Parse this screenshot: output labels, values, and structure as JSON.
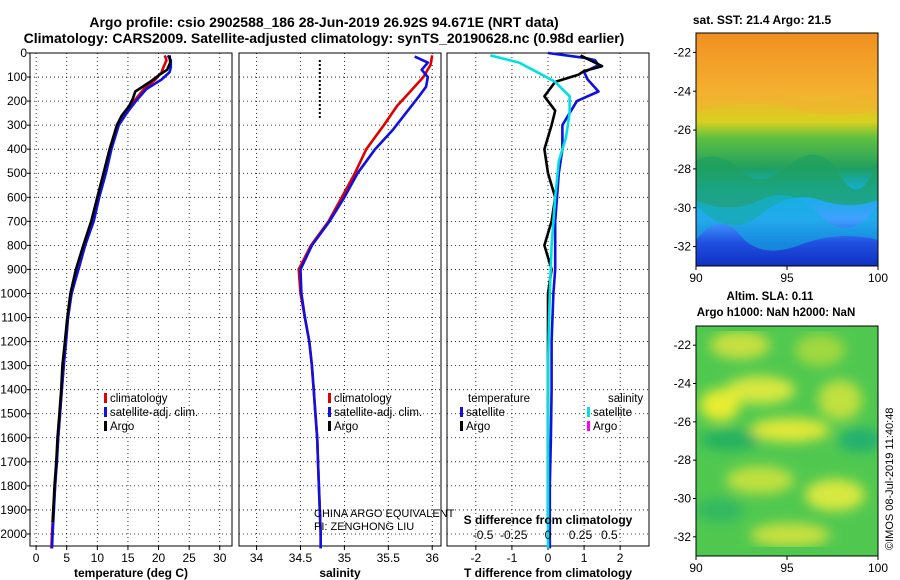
{
  "header": {
    "line1": "Argo profile: csio 2902588_186 28-Jun-2019 26.92S 94.671E (NRT data)",
    "line2": "Climatology: CARS2009. Satellite-adjusted climatology: synTS_20190628.nc (0.98d earlier)"
  },
  "colors": {
    "climatology": "#e00000",
    "satellite_adj": "#1010e0",
    "argo": "#000000",
    "sat_diff_T": "#00e0e0",
    "argo_diff_S": "#ff00ff"
  },
  "chart_data": [
    {
      "type": "line",
      "panel": "temperature",
      "xlabel": "temperature (deg C)",
      "ylabel": "",
      "xlim": [
        -1,
        32
      ],
      "ylim": [
        2050,
        0
      ],
      "xticks": [
        0,
        5,
        10,
        15,
        20,
        25,
        30
      ],
      "yticks": [
        0,
        100,
        200,
        300,
        400,
        500,
        600,
        700,
        800,
        900,
        1000,
        1100,
        1200,
        1300,
        1400,
        1500,
        1600,
        1700,
        1800,
        1900,
        2000
      ],
      "legend": [
        "climatology",
        "satellite-adj. clim.",
        "Argo"
      ],
      "series": [
        {
          "name": "climatology",
          "color": "#e00000",
          "points": [
            [
              21.0,
              10
            ],
            [
              21.3,
              30
            ],
            [
              20.8,
              60
            ],
            [
              20.5,
              80
            ],
            [
              19.5,
              110
            ],
            [
              17.6,
              150
            ],
            [
              16.0,
              200
            ],
            [
              14.5,
              250
            ],
            [
              13.3,
              300
            ],
            [
              12.2,
              400
            ],
            [
              11.3,
              500
            ],
            [
              10.2,
              600
            ],
            [
              9.3,
              700
            ],
            [
              8.0,
              800
            ],
            [
              6.9,
              900
            ],
            [
              5.7,
              1000
            ],
            [
              5.2,
              1100
            ],
            [
              4.8,
              1200
            ],
            [
              4.5,
              1300
            ],
            [
              4.2,
              1400
            ],
            [
              3.9,
              1500
            ],
            [
              3.6,
              1600
            ],
            [
              3.3,
              1700
            ],
            [
              3.1,
              1800
            ],
            [
              2.8,
              1900
            ],
            [
              2.6,
              2000
            ],
            [
              2.5,
              2060
            ]
          ]
        },
        {
          "name": "satellite-adj. clim.",
          "color": "#1010e0",
          "points": [
            [
              21.5,
              10
            ],
            [
              22.0,
              30
            ],
            [
              22.0,
              60
            ],
            [
              21.8,
              80
            ],
            [
              20.5,
              110
            ],
            [
              18.0,
              150
            ],
            [
              16.3,
              200
            ],
            [
              14.8,
              250
            ],
            [
              13.5,
              300
            ],
            [
              12.3,
              400
            ],
            [
              11.4,
              500
            ],
            [
              10.3,
              600
            ],
            [
              9.4,
              700
            ],
            [
              8.0,
              800
            ],
            [
              6.9,
              900
            ],
            [
              5.8,
              1000
            ],
            [
              5.2,
              1100
            ],
            [
              4.9,
              1200
            ],
            [
              4.5,
              1300
            ],
            [
              4.2,
              1400
            ],
            [
              3.9,
              1500
            ],
            [
              3.6,
              1600
            ],
            [
              3.4,
              1700
            ],
            [
              3.1,
              1800
            ],
            [
              2.9,
              1900
            ],
            [
              2.7,
              2000
            ],
            [
              2.6,
              2060
            ]
          ]
        },
        {
          "name": "Argo",
          "color": "#000000",
          "points": [
            [
              21.8,
              10
            ],
            [
              21.9,
              40
            ],
            [
              21.4,
              70
            ],
            [
              20.2,
              90
            ],
            [
              18.6,
              120
            ],
            [
              16.2,
              160
            ],
            [
              15.8,
              190
            ],
            [
              15.2,
              220
            ],
            [
              14.0,
              260
            ],
            [
              13.2,
              300
            ],
            [
              12.0,
              400
            ],
            [
              11.0,
              500
            ],
            [
              10.0,
              600
            ],
            [
              9.0,
              700
            ],
            [
              7.7,
              800
            ],
            [
              6.5,
              900
            ],
            [
              5.6,
              1000
            ],
            [
              5.1,
              1100
            ],
            [
              4.7,
              1200
            ],
            [
              4.3,
              1300
            ],
            [
              4.1,
              1400
            ],
            [
              3.8,
              1500
            ],
            [
              3.5,
              1600
            ],
            [
              3.3,
              1700
            ],
            [
              3.0,
              1800
            ],
            [
              2.8,
              1900
            ],
            [
              2.7,
              1950
            ]
          ]
        }
      ]
    },
    {
      "type": "line",
      "panel": "salinity",
      "xlabel": "salinity",
      "xlim": [
        33.8,
        36.1
      ],
      "ylim": [
        2050,
        0
      ],
      "xticks": [
        34,
        34.5,
        35,
        35.5,
        36
      ],
      "legend": [
        "climatology",
        "satellite-adj. clim.",
        "Argo"
      ],
      "annotations": [
        "CHINA ARGO EQUIVALENT",
        "PI: ZENGHONG LIU"
      ],
      "series": [
        {
          "name": "climatology",
          "color": "#e00000",
          "points": [
            [
              36.0,
              10
            ],
            [
              35.98,
              50
            ],
            [
              35.9,
              100
            ],
            [
              35.75,
              160
            ],
            [
              35.6,
              220
            ],
            [
              35.45,
              300
            ],
            [
              35.25,
              400
            ],
            [
              35.12,
              500
            ],
            [
              34.97,
              600
            ],
            [
              34.82,
              700
            ],
            [
              34.62,
              800
            ],
            [
              34.48,
              900
            ],
            [
              34.5,
              1000
            ],
            [
              34.55,
              1100
            ],
            [
              34.6,
              1200
            ],
            [
              34.63,
              1300
            ],
            [
              34.65,
              1400
            ],
            [
              34.67,
              1500
            ],
            [
              34.69,
              1600
            ],
            [
              34.7,
              1700
            ],
            [
              34.71,
              1800
            ],
            [
              34.72,
              1900
            ],
            [
              34.73,
              2000
            ],
            [
              34.73,
              2060
            ]
          ]
        },
        {
          "name": "satellite-adj. clim.",
          "color": "#1010e0",
          "points": [
            [
              35.8,
              15
            ],
            [
              35.95,
              40
            ],
            [
              35.88,
              70
            ],
            [
              35.95,
              100
            ],
            [
              35.93,
              140
            ],
            [
              35.85,
              180
            ],
            [
              35.7,
              250
            ],
            [
              35.55,
              320
            ],
            [
              35.35,
              400
            ],
            [
              35.15,
              500
            ],
            [
              35.0,
              600
            ],
            [
              34.83,
              700
            ],
            [
              34.63,
              800
            ],
            [
              34.5,
              900
            ],
            [
              34.51,
              1000
            ],
            [
              34.55,
              1100
            ],
            [
              34.6,
              1200
            ],
            [
              34.63,
              1300
            ],
            [
              34.65,
              1400
            ],
            [
              34.67,
              1500
            ],
            [
              34.69,
              1600
            ],
            [
              34.7,
              1700
            ],
            [
              34.71,
              1800
            ],
            [
              34.72,
              1900
            ],
            [
              34.73,
              2000
            ],
            [
              34.73,
              2060
            ]
          ]
        },
        {
          "name": "Argo",
          "color": "#000000",
          "points": []
        }
      ]
    },
    {
      "type": "line",
      "panel": "difference",
      "xlabel": "T difference from climatology",
      "xlabel_top": "S difference from climatology",
      "xlim": [
        -2.8,
        2.8
      ],
      "ylim": [
        2050,
        0
      ],
      "xticks": [
        -2,
        -1,
        0,
        1,
        2
      ],
      "xtick_labels_S": [
        "-0.5",
        "-0.25",
        "0",
        "0.25",
        "0.5"
      ],
      "legend": [
        "temperature",
        "satellite",
        "Argo",
        "salinity",
        "satellite",
        "Argo"
      ],
      "series": [
        {
          "name": "T satellite",
          "color": "#1010e0",
          "points": [
            [
              0.0,
              0
            ],
            [
              1.0,
              20
            ],
            [
              1.3,
              30
            ],
            [
              1.4,
              50
            ],
            [
              1.0,
              80
            ],
            [
              1.1,
              110
            ],
            [
              1.4,
              160
            ],
            [
              0.8,
              200
            ],
            [
              0.4,
              300
            ],
            [
              0.4,
              400
            ],
            [
              0.3,
              500
            ],
            [
              0.25,
              600
            ],
            [
              0.2,
              700
            ],
            [
              0.2,
              800
            ],
            [
              0.2,
              900
            ],
            [
              0.15,
              1000
            ],
            [
              0.1,
              1200
            ],
            [
              0.1,
              1400
            ],
            [
              0.08,
              1600
            ],
            [
              0.05,
              1800
            ],
            [
              0.05,
              2000
            ],
            [
              0.05,
              2060
            ]
          ]
        },
        {
          "name": "T Argo",
          "color": "#000000",
          "points": [
            [
              0.9,
              10
            ],
            [
              1.3,
              40
            ],
            [
              1.5,
              55
            ],
            [
              1.0,
              75
            ],
            [
              0.85,
              90
            ],
            [
              0.2,
              120
            ],
            [
              -0.1,
              180
            ],
            [
              0.2,
              240
            ],
            [
              0.1,
              300
            ],
            [
              -0.1,
              400
            ],
            [
              0.0,
              500
            ],
            [
              0.2,
              600
            ],
            [
              0.1,
              700
            ],
            [
              -0.1,
              800
            ],
            [
              0.1,
              900
            ],
            [
              0.0,
              1000
            ],
            [
              0.0,
              1200
            ],
            [
              0.0,
              1400
            ],
            [
              0.0,
              1600
            ],
            [
              0.0,
              1800
            ],
            [
              0.0,
              1950
            ]
          ]
        },
        {
          "name": "S satellite",
          "color": "#00e0e0",
          "points": [
            [
              -1.6,
              10
            ],
            [
              -0.8,
              40
            ],
            [
              -0.3,
              80
            ],
            [
              0.2,
              120
            ],
            [
              0.6,
              180
            ],
            [
              0.6,
              250
            ],
            [
              0.5,
              350
            ],
            [
              0.3,
              450
            ],
            [
              0.2,
              600
            ],
            [
              0.1,
              800
            ],
            [
              0.05,
              1000
            ],
            [
              0.0,
              1300
            ],
            [
              0.0,
              1600
            ],
            [
              0.0,
              1900
            ],
            [
              0.0,
              2060
            ]
          ]
        }
      ]
    },
    {
      "type": "heatmap",
      "panel": "sst",
      "title": "sat. SST: 21.4 Argo: 21.5",
      "xlim": [
        90,
        100
      ],
      "ylim": [
        -33,
        -21
      ],
      "xticks": [
        90,
        95,
        100
      ],
      "yticks": [
        -22,
        -24,
        -26,
        -28,
        -30,
        -32
      ]
    },
    {
      "type": "heatmap",
      "panel": "sla",
      "title": "Altim. SLA: 0.11",
      "subtitle": "Argo h1000: NaN h2000: NaN",
      "xlim": [
        90,
        100
      ],
      "ylim": [
        -33,
        -21
      ],
      "xticks": [
        90,
        95,
        100
      ],
      "yticks": [
        -22,
        -24,
        -26,
        -28,
        -30,
        -32
      ]
    }
  ],
  "legends": {
    "temperature": [
      "climatology",
      "satellite-adj. clim.",
      "Argo"
    ],
    "salinity": [
      "climatology",
      "satellite-adj. clim.",
      "Argo"
    ],
    "diff_left_title": "temperature",
    "diff_left": [
      "satellite",
      "Argo"
    ],
    "diff_right_title": "salinity",
    "diff_right": [
      "satellite",
      "Argo"
    ]
  },
  "credit": "©IMOS 08-Jul-2019 11:40:48"
}
